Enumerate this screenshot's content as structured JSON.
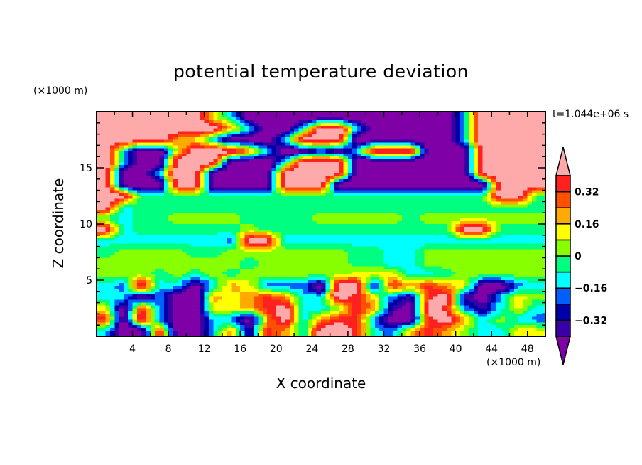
{
  "chart_data": {
    "type": "heatmap",
    "title": "potential temperature deviation",
    "xlabel": "X coordinate",
    "ylabel": "Z coordinate",
    "x_unit": "(×1000 m)",
    "y_unit": "(×1000 m)",
    "time_label": "t=1.044e+06 s",
    "xlim": [
      0,
      50
    ],
    "ylim": [
      0,
      20
    ],
    "x_ticks": [
      4,
      8,
      12,
      16,
      20,
      24,
      28,
      32,
      36,
      40,
      44,
      48
    ],
    "y_ticks": [
      5,
      10,
      15
    ],
    "grid": [
      "PPPPPPYCVVVVVVVVVVVVCPPPP",
      "PPPPPPPACVVCPPCVVVVVCPPPP",
      "PPPPAYCVVVCPPPVVVVVVCPPPP",
      "PCVVYPPPOCVVDVCPPPVVVPPPP",
      "PCVVPPPVVVCPPPVVVVVVVPPPP",
      "PVVCPPVVVVPPPPVVVVVVVPPPP",
      "PVVVPPVVVVPPPVVVVVVVVVPPP",
      "PPGGGGGGGGGGGGGGGGGGGGPPG",
      "PCGGGGGGGGGGGGGGGGGGGGGGG",
      "GCGGLLLLGGGGLLLLLGLLLLLLL",
      "PCGGGGGGLGGGGGGGGGGGPPGGG",
      "CCCCCCCBPPCCCCCCCCCCCCCCC",
      "GLLLLGGLLLLLLLGGCCLLLLLLL",
      "LLLLLLLLGLLLLLGGCCLLLLLLL",
      "LLLGLGLGLLLLLLYYYCCGLLLLL",
      "CBPCCVCAYBBBVPPIRARAYVVBC",
      "CCVBVVAYARACCPRYBIRPIVCYL",
      "YVRBVVYYARPCCLRAIVPRBICYC",
      "RVPBVVCBVAPCARRBVVRPACLCB",
      "CVVRVVCAIRACPPRCBARALCCYY"
    ],
    "colorbar": {
      "levels": [
        -0.4,
        -0.32,
        -0.24,
        -0.16,
        -0.08,
        0,
        0.08,
        0.16,
        0.24,
        0.32,
        0.4
      ],
      "labels": [
        "0.32",
        "0.16",
        "0",
        "−0.16",
        "−0.32"
      ],
      "label_values": [
        0.32,
        0.16,
        0,
        -0.16,
        -0.32
      ],
      "colors": [
        "#3a00a8",
        "#0000a8",
        "#0060ff",
        "#00ffff",
        "#00ff80",
        "#88ff00",
        "#ffff00",
        "#ffaa00",
        "#ff5000",
        "#ff2020"
      ],
      "under_color": "#7e00a6",
      "over_color": "#ffaaaa",
      "placement": "right"
    },
    "grid_encoding": {
      "cell_size_x": 2,
      "cell_size_z": 1,
      "rows_order": "top (z=19.5) to bottom (z=0.5)",
      "codes": {
        "V": -0.5,
        "I": -0.36,
        "D": -0.28,
        "B": -0.2,
        "C": -0.12,
        "G": -0.04,
        "L": 0.04,
        "Y": 0.12,
        "A": 0.2,
        "O": 0.28,
        "R": 0.36,
        "P": 0.5
      }
    }
  }
}
